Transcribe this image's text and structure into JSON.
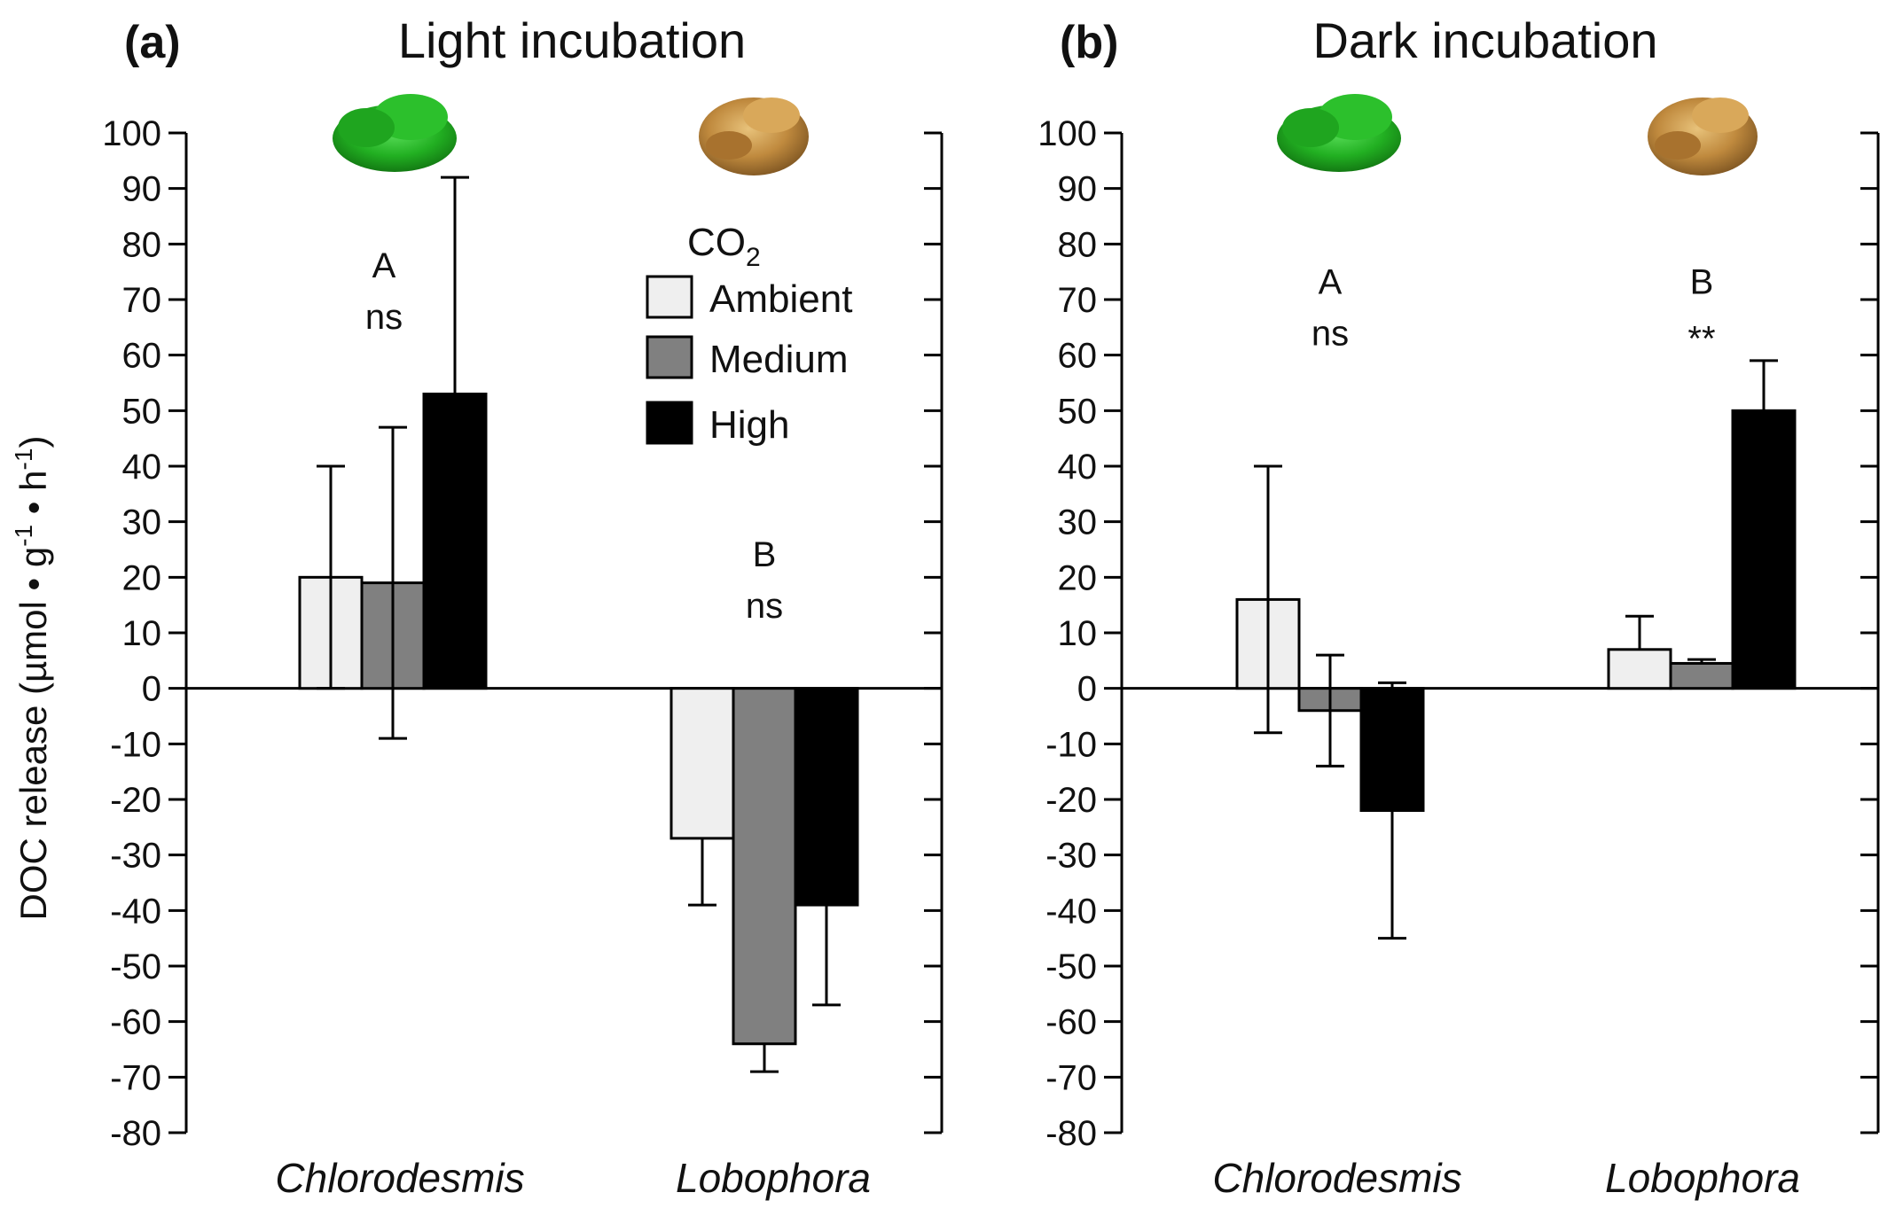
{
  "colors": {
    "Ambient": "#efefef",
    "Medium": "#808080",
    "High": "#000000"
  },
  "icons": {
    "Chlorodesmis": "green-algae-icon",
    "Lobophora": "brown-algae-icon"
  },
  "ylabel": {
    "prefix": "DOC release (µmol • g",
    "sup1": "-1",
    "mid": " • h",
    "sup2": "-1",
    "suffix": ")"
  },
  "legend": {
    "title_main": "CO",
    "title_sub": "2",
    "entries": [
      "Ambient",
      "Medium",
      "High"
    ]
  },
  "chart_data": [
    {
      "type": "bar",
      "panel_label": "(a)",
      "title": "Light incubation",
      "categories": [
        "Chlorodesmis",
        "Lobophora"
      ],
      "ylim": [
        -80,
        100
      ],
      "yticks": [
        "100",
        "90",
        "80",
        "70",
        "60",
        "50",
        "40",
        "30",
        "20",
        "10",
        "0",
        "-10",
        "-20",
        "-30",
        "-40",
        "-50",
        "-60",
        "-70",
        "-80"
      ],
      "legend_position": "top-center",
      "series": [
        {
          "name": "Ambient",
          "values": [
            20,
            -27
          ],
          "errors": [
            20,
            12
          ],
          "error_dir": [
            "both",
            "down"
          ]
        },
        {
          "name": "Medium",
          "values": [
            19,
            -64
          ],
          "errors": [
            28,
            5
          ],
          "error_dir": [
            "both",
            "down"
          ]
        },
        {
          "name": "High",
          "values": [
            53,
            -39
          ],
          "errors": [
            39,
            18
          ],
          "error_dir": [
            "up",
            "down"
          ]
        }
      ],
      "annotations": [
        {
          "category": "Chlorodesmis",
          "letter": "A",
          "sig": "ns",
          "y": 74
        },
        {
          "category": "Lobophora",
          "letter": "B",
          "sig": "ns",
          "y": 22
        }
      ]
    },
    {
      "type": "bar",
      "panel_label": "(b)",
      "title": "Dark incubation",
      "categories": [
        "Chlorodesmis",
        "Lobophora"
      ],
      "ylim": [
        -80,
        100
      ],
      "yticks": [
        "100",
        "90",
        "80",
        "70",
        "60",
        "50",
        "40",
        "30",
        "20",
        "10",
        "0",
        "-10",
        "-20",
        "-30",
        "-40",
        "-50",
        "-60",
        "-70",
        "-80"
      ],
      "series": [
        {
          "name": "Ambient",
          "values": [
            16,
            7
          ],
          "errors": [
            24,
            6
          ],
          "error_dir": [
            "both",
            "up"
          ]
        },
        {
          "name": "Medium",
          "values": [
            -4,
            4.5
          ],
          "errors": [
            10,
            0.7
          ],
          "error_dir": [
            "both",
            "up"
          ]
        },
        {
          "name": "High",
          "values": [
            -22,
            50
          ],
          "errors": [
            23,
            9
          ],
          "error_dir": [
            "both",
            "up"
          ]
        }
      ],
      "annotations": [
        {
          "category": "Chlorodesmis",
          "letter": "A",
          "sig": "ns",
          "y": 71
        },
        {
          "category": "Lobophora",
          "letter": "B",
          "sig": "**",
          "y": 71
        }
      ]
    }
  ]
}
